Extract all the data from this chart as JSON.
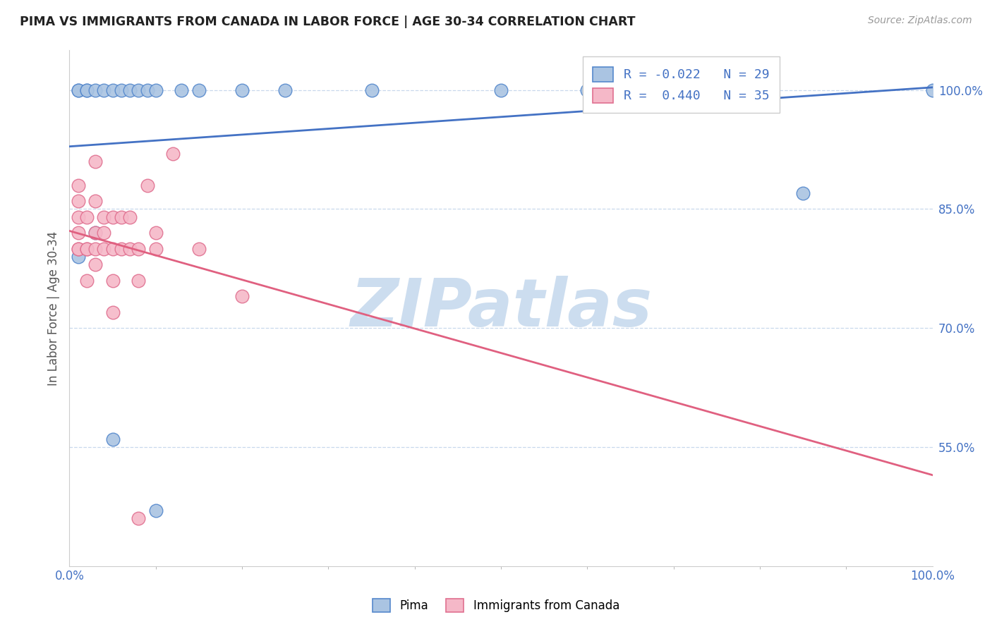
{
  "title": "PIMA VS IMMIGRANTS FROM CANADA IN LABOR FORCE | AGE 30-34 CORRELATION CHART",
  "source": "Source: ZipAtlas.com",
  "ylabel": "In Labor Force | Age 30-34",
  "xlim": [
    0,
    100
  ],
  "ylim": [
    40,
    105
  ],
  "ytick_values": [
    55,
    70,
    85,
    100
  ],
  "r_pima": -0.022,
  "n_pima": 29,
  "r_canada": 0.44,
  "n_canada": 35,
  "pima_color": "#aac4e2",
  "canada_color": "#f5b8c8",
  "pima_edge_color": "#5588cc",
  "canada_edge_color": "#e07090",
  "pima_line_color": "#4472c4",
  "canada_line_color": "#e06080",
  "legend_text_color": "#4472c4",
  "axis_text_color": "#4472c4",
  "background": "#ffffff",
  "watermark_text": "ZIPatlas",
  "watermark_color": "#ccddef",
  "grid_color": "#c8d8ec",
  "pima_x": [
    1,
    1,
    2,
    2,
    3,
    4,
    5,
    6,
    7,
    8,
    9,
    10,
    13,
    15,
    20,
    25,
    35,
    50,
    60,
    65,
    70,
    75,
    80,
    85,
    100,
    1,
    3,
    5,
    10
  ],
  "pima_y": [
    100,
    100,
    100,
    100,
    100,
    100,
    100,
    100,
    100,
    100,
    100,
    100,
    100,
    100,
    100,
    100,
    100,
    100,
    100,
    100,
    100,
    100,
    100,
    87,
    100,
    79,
    82,
    56,
    47
  ],
  "canada_x": [
    1,
    1,
    1,
    1,
    1,
    1,
    2,
    2,
    2,
    2,
    3,
    3,
    3,
    3,
    4,
    4,
    4,
    5,
    5,
    5,
    5,
    6,
    6,
    7,
    7,
    8,
    8,
    9,
    10,
    10,
    12,
    15,
    20,
    8,
    3
  ],
  "canada_y": [
    80,
    82,
    84,
    86,
    88,
    80,
    76,
    80,
    84,
    80,
    82,
    80,
    78,
    86,
    80,
    82,
    84,
    72,
    76,
    80,
    84,
    80,
    84,
    80,
    84,
    76,
    80,
    88,
    80,
    82,
    92,
    80,
    74,
    46,
    91
  ]
}
